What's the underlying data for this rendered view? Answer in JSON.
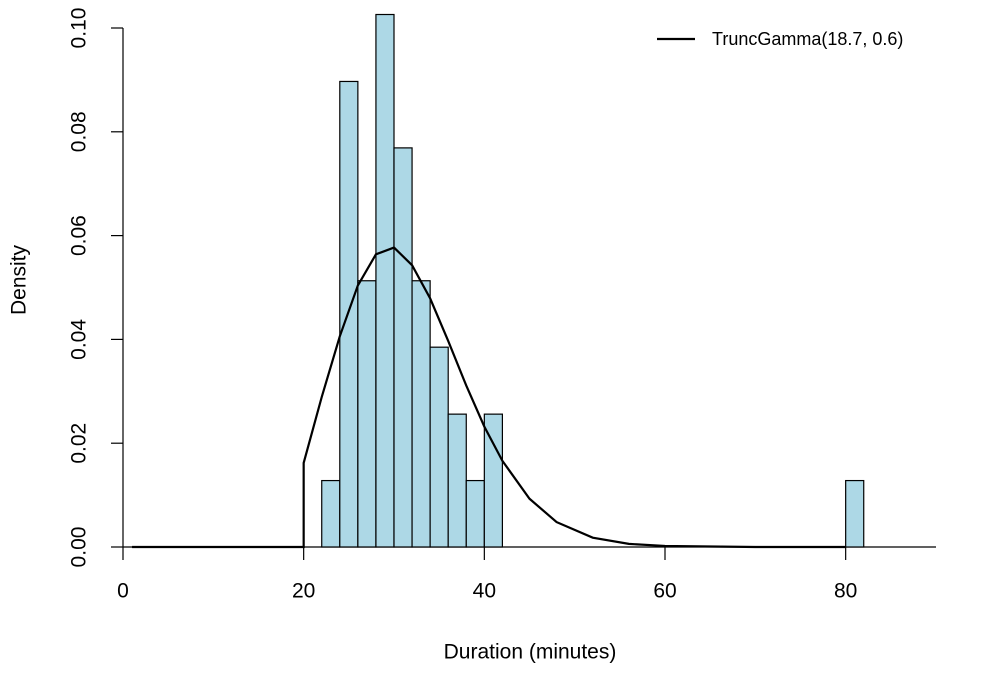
{
  "chart_data": {
    "type": "histogram",
    "x_label": "Duration (minutes)",
    "y_label": "Density",
    "bins": [
      22,
      24,
      26,
      28,
      30,
      32,
      34,
      36,
      38,
      40,
      42,
      44,
      46,
      48,
      50,
      52,
      54,
      56,
      58,
      60,
      62,
      64,
      66,
      68,
      70,
      72,
      74,
      76,
      78,
      80,
      82
    ],
    "values": [
      0.0128,
      0.0897,
      0.0513,
      0.1026,
      0.0769,
      0.0513,
      0.0385,
      0.0256,
      0.0128,
      0.0256,
      0,
      0,
      0,
      0,
      0,
      0,
      0,
      0,
      0,
      0,
      0,
      0,
      0,
      0,
      0,
      0,
      0,
      0,
      0,
      0.0128
    ],
    "color": "#add8e6",
    "lines": [
      {
        "name": "TruncGamma(18.7, 0.6)",
        "color": "#000000",
        "x": [
          1,
          20,
          20,
          22,
          24,
          26,
          28,
          30,
          32,
          34,
          36,
          38,
          40,
          42,
          45,
          48,
          52,
          56,
          60,
          70,
          80
        ],
        "values": [
          0,
          0,
          0.0162,
          0.0289,
          0.0406,
          0.0504,
          0.0564,
          0.0577,
          0.0543,
          0.0479,
          0.0397,
          0.0311,
          0.0232,
          0.0166,
          0.0093,
          0.0048,
          0.0018,
          0.0006,
          0.0002,
          0,
          0
        ]
      }
    ],
    "legend": "top-right",
    "xlim": [
      0,
      90
    ],
    "ylim": [
      0,
      0.1
    ],
    "xticks": [
      0,
      20,
      40,
      60,
      80
    ],
    "yticks": [
      {
        "value": 0,
        "label": "0.00"
      },
      {
        "value": 0.02,
        "label": "0.02"
      },
      {
        "value": 0.04,
        "label": "0.04"
      },
      {
        "value": 0.06,
        "label": "0.06"
      },
      {
        "value": 0.08,
        "label": "0.08"
      },
      {
        "value": 0.1,
        "label": "0.10"
      }
    ]
  }
}
